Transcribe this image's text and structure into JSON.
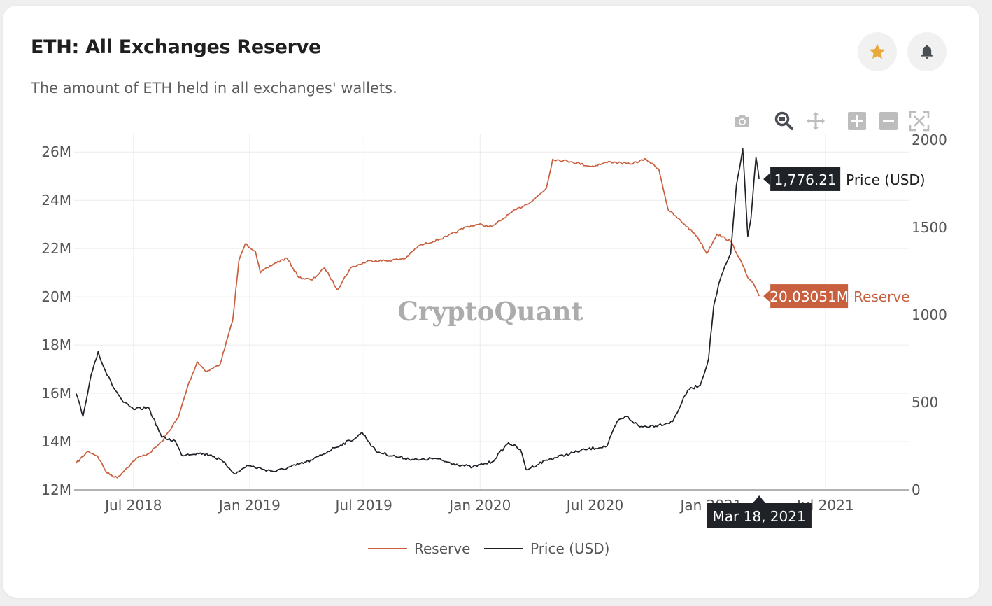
{
  "header": {
    "title": "ETH: All Exchanges Reserve",
    "subtitle": "The amount of ETH held in all exchanges' wallets."
  },
  "actions": {
    "favorite_icon": "star-icon",
    "alert_icon": "bell-icon"
  },
  "modebar": {
    "icons": [
      "camera-icon",
      "zoom-icon",
      "pan-icon",
      "zoom-in-icon",
      "zoom-out-icon",
      "autoscale-icon"
    ]
  },
  "watermark": "CryptoQuant",
  "colors": {
    "reserve": "#c8603f",
    "price": "#1f2328",
    "star": "#e9a83a",
    "tooltip_dark": "#1f2328",
    "tooltip_reserve": "#c8603f"
  },
  "chart_data": {
    "type": "line",
    "title": "ETH: All Exchanges Reserve",
    "x_ticks": [
      "Jul 2018",
      "Jan 2019",
      "Jul 2019",
      "Jan 2020",
      "Jul 2020",
      "Jan 2021",
      "Jul 2021"
    ],
    "x_tick_dates": [
      "2018-07-01",
      "2019-01-01",
      "2019-07-01",
      "2020-01-01",
      "2020-07-01",
      "2021-01-01",
      "2021-07-01"
    ],
    "x_range": [
      "2018-03-29",
      "2021-11-10"
    ],
    "y_left": {
      "ticks": [
        "12M",
        "14M",
        "16M",
        "18M",
        "20M",
        "22M",
        "24M",
        "26M"
      ],
      "range": [
        12,
        26.5
      ],
      "unit": "M"
    },
    "y_right": {
      "ticks": [
        "0",
        "500",
        "1000",
        "1500",
        "2000"
      ],
      "range": [
        0,
        2000
      ]
    },
    "grid": true,
    "legend_position": "bottom-center",
    "series": [
      {
        "name": "Reserve",
        "axis": "left",
        "points": [
          [
            "2018-04-01",
            13.1
          ],
          [
            "2018-04-20",
            13.6
          ],
          [
            "2018-05-05",
            13.4
          ],
          [
            "2018-05-20",
            12.7
          ],
          [
            "2018-06-05",
            12.5
          ],
          [
            "2018-06-20",
            12.9
          ],
          [
            "2018-07-05",
            13.3
          ],
          [
            "2018-07-25",
            13.5
          ],
          [
            "2018-08-15",
            14.0
          ],
          [
            "2018-09-10",
            15.0
          ],
          [
            "2018-09-25",
            16.3
          ],
          [
            "2018-10-10",
            17.3
          ],
          [
            "2018-10-25",
            16.9
          ],
          [
            "2018-11-15",
            17.2
          ],
          [
            "2018-12-05",
            19.0
          ],
          [
            "2018-12-15",
            21.5
          ],
          [
            "2018-12-25",
            22.2
          ],
          [
            "2019-01-10",
            21.9
          ],
          [
            "2019-01-18",
            21.0
          ],
          [
            "2019-02-10",
            21.4
          ],
          [
            "2019-03-01",
            21.6
          ],
          [
            "2019-03-20",
            20.8
          ],
          [
            "2019-04-10",
            20.7
          ],
          [
            "2019-04-30",
            21.2
          ],
          [
            "2019-05-20",
            20.3
          ],
          [
            "2019-06-10",
            21.2
          ],
          [
            "2019-07-10",
            21.5
          ],
          [
            "2019-08-10",
            21.5
          ],
          [
            "2019-09-05",
            21.6
          ],
          [
            "2019-09-25",
            22.1
          ],
          [
            "2019-11-10",
            22.5
          ],
          [
            "2019-12-10",
            22.9
          ],
          [
            "2019-12-30",
            23.0
          ],
          [
            "2020-01-20",
            22.9
          ],
          [
            "2020-02-20",
            23.5
          ],
          [
            "2020-03-25",
            24.0
          ],
          [
            "2020-04-15",
            24.5
          ],
          [
            "2020-04-25",
            25.7
          ],
          [
            "2020-05-25",
            25.6
          ],
          [
            "2020-06-25",
            25.4
          ],
          [
            "2020-07-25",
            25.6
          ],
          [
            "2020-08-25",
            25.5
          ],
          [
            "2020-09-20",
            25.7
          ],
          [
            "2020-10-10",
            25.3
          ],
          [
            "2020-10-25",
            23.6
          ],
          [
            "2020-11-20",
            23.0
          ],
          [
            "2020-12-10",
            22.5
          ],
          [
            "2020-12-25",
            21.8
          ],
          [
            "2021-01-10",
            22.6
          ],
          [
            "2021-02-01",
            22.3
          ],
          [
            "2021-02-15",
            21.6
          ],
          [
            "2021-02-28",
            20.8
          ],
          [
            "2021-03-10",
            20.5
          ],
          [
            "2021-03-18",
            20.03051
          ]
        ]
      },
      {
        "name": "Price (USD)",
        "axis": "right",
        "points": [
          [
            "2018-04-01",
            550
          ],
          [
            "2018-04-12",
            420
          ],
          [
            "2018-04-25",
            660
          ],
          [
            "2018-05-06",
            790
          ],
          [
            "2018-05-15",
            700
          ],
          [
            "2018-05-28",
            600
          ],
          [
            "2018-06-15",
            500
          ],
          [
            "2018-07-01",
            460
          ],
          [
            "2018-07-25",
            470
          ],
          [
            "2018-08-15",
            300
          ],
          [
            "2018-09-05",
            280
          ],
          [
            "2018-09-15",
            200
          ],
          [
            "2018-10-10",
            210
          ],
          [
            "2018-11-01",
            200
          ],
          [
            "2018-11-20",
            160
          ],
          [
            "2018-12-10",
            90
          ],
          [
            "2018-12-28",
            140
          ],
          [
            "2019-01-20",
            120
          ],
          [
            "2019-02-10",
            105
          ],
          [
            "2019-03-15",
            140
          ],
          [
            "2019-04-10",
            170
          ],
          [
            "2019-05-15",
            240
          ],
          [
            "2019-06-20",
            300
          ],
          [
            "2019-06-28",
            330
          ],
          [
            "2019-07-20",
            220
          ],
          [
            "2019-08-20",
            190
          ],
          [
            "2019-09-25",
            170
          ],
          [
            "2019-10-20",
            180
          ],
          [
            "2019-11-20",
            150
          ],
          [
            "2019-12-20",
            130
          ],
          [
            "2020-01-20",
            160
          ],
          [
            "2020-02-15",
            270
          ],
          [
            "2020-03-05",
            230
          ],
          [
            "2020-03-14",
            115
          ],
          [
            "2020-04-15",
            170
          ],
          [
            "2020-05-15",
            200
          ],
          [
            "2020-06-15",
            230
          ],
          [
            "2020-07-20",
            250
          ],
          [
            "2020-08-05",
            390
          ],
          [
            "2020-08-20",
            420
          ],
          [
            "2020-09-10",
            360
          ],
          [
            "2020-10-10",
            370
          ],
          [
            "2020-11-01",
            390
          ],
          [
            "2020-11-25",
            570
          ],
          [
            "2020-12-15",
            600
          ],
          [
            "2020-12-28",
            750
          ],
          [
            "2021-01-05",
            1050
          ],
          [
            "2021-01-15",
            1200
          ],
          [
            "2021-01-20",
            1250
          ],
          [
            "2021-02-01",
            1350
          ],
          [
            "2021-02-10",
            1740
          ],
          [
            "2021-02-20",
            1950
          ],
          [
            "2021-02-28",
            1450
          ],
          [
            "2021-03-05",
            1550
          ],
          [
            "2021-03-13",
            1900
          ],
          [
            "2021-03-18",
            1776.21
          ]
        ]
      }
    ],
    "hover": {
      "date": "Mar 18, 2021",
      "price_value": "1,776.21",
      "price_label": "Price (USD)",
      "reserve_value": "20.03051M",
      "reserve_label": "Reserve"
    },
    "legend": [
      "Reserve",
      "Price (USD)"
    ]
  }
}
